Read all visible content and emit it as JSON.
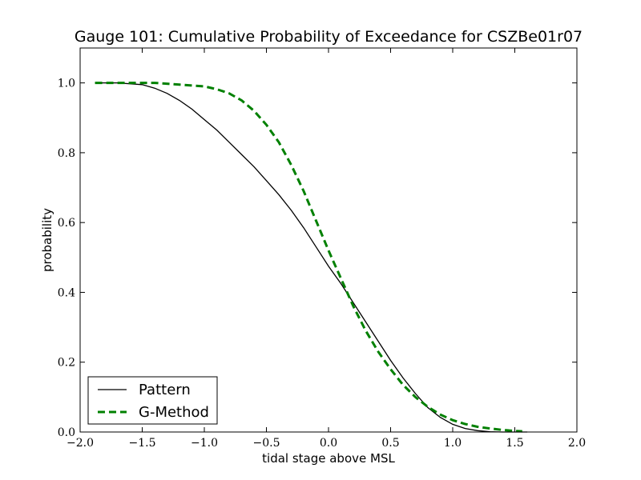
{
  "chart_data": {
    "type": "line",
    "title": "Gauge 101: Cumulative Probability of Exceedance for CSZBe01r07",
    "xlabel": "tidal stage above MSL",
    "ylabel": "probability",
    "xlim": [
      -2.0,
      2.0
    ],
    "ylim": [
      0.0,
      1.1
    ],
    "xticks": [
      -2.0,
      -1.5,
      -1.0,
      -0.5,
      0.0,
      0.5,
      1.0,
      1.5,
      2.0
    ],
    "xtick_labels": [
      "−2.0",
      "−1.5",
      "−1.0",
      "−0.5",
      "0.0",
      "0.5",
      "1.0",
      "1.5",
      "2.0"
    ],
    "yticks": [
      0.0,
      0.2,
      0.4,
      0.6,
      0.8,
      1.0
    ],
    "ytick_labels": [
      "0.0",
      "0.2",
      "0.4",
      "0.6",
      "0.8",
      "1.0"
    ],
    "grid": false,
    "legend_position": "lower-left",
    "series": [
      {
        "name": "Pattern",
        "color": "#000000",
        "style": "solid",
        "x": [
          -1.88,
          -1.7,
          -1.5,
          -1.4,
          -1.3,
          -1.2,
          -1.1,
          -1.0,
          -0.9,
          -0.8,
          -0.7,
          -0.6,
          -0.5,
          -0.4,
          -0.3,
          -0.2,
          -0.1,
          0.0,
          0.1,
          0.2,
          0.3,
          0.4,
          0.5,
          0.6,
          0.7,
          0.8,
          0.9,
          1.0,
          1.1,
          1.2,
          1.3,
          1.4,
          1.5,
          1.6
        ],
        "y": [
          1.0,
          1.0,
          0.995,
          0.985,
          0.97,
          0.95,
          0.925,
          0.895,
          0.865,
          0.83,
          0.795,
          0.76,
          0.72,
          0.68,
          0.635,
          0.585,
          0.53,
          0.475,
          0.425,
          0.37,
          0.315,
          0.26,
          0.205,
          0.155,
          0.11,
          0.07,
          0.042,
          0.022,
          0.01,
          0.004,
          0.001,
          0.0,
          0.0,
          0.0
        ]
      },
      {
        "name": "G-Method",
        "color": "#008000",
        "style": "dashed",
        "x": [
          -1.88,
          -1.6,
          -1.4,
          -1.2,
          -1.0,
          -0.9,
          -0.8,
          -0.7,
          -0.6,
          -0.5,
          -0.4,
          -0.3,
          -0.2,
          -0.1,
          0.0,
          0.1,
          0.2,
          0.3,
          0.4,
          0.5,
          0.6,
          0.7,
          0.8,
          0.9,
          1.0,
          1.1,
          1.2,
          1.3,
          1.4,
          1.5,
          1.56
        ],
        "y": [
          1.0,
          1.0,
          1.0,
          0.995,
          0.99,
          0.982,
          0.97,
          0.95,
          0.92,
          0.88,
          0.83,
          0.765,
          0.69,
          0.605,
          0.52,
          0.44,
          0.36,
          0.29,
          0.23,
          0.18,
          0.135,
          0.1,
          0.072,
          0.05,
          0.034,
          0.023,
          0.015,
          0.01,
          0.006,
          0.003,
          0.002
        ]
      }
    ]
  }
}
